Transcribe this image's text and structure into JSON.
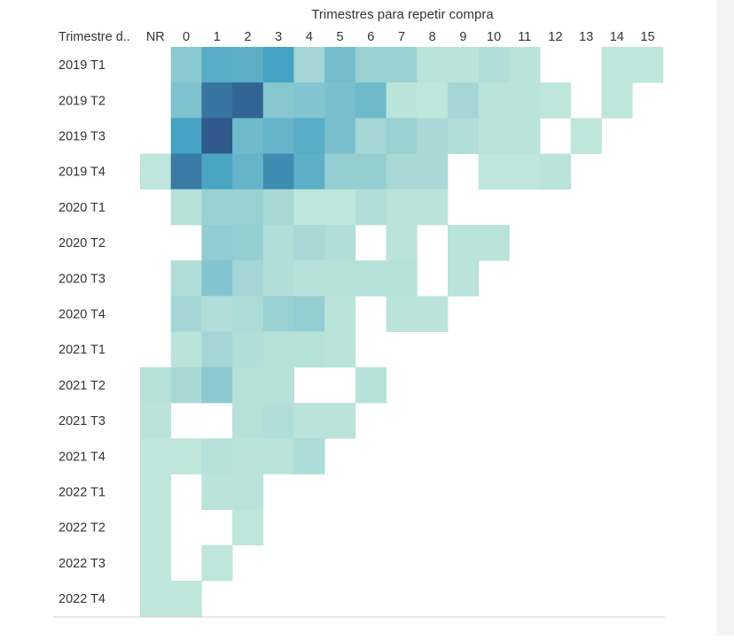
{
  "chart_data": {
    "type": "heatmap",
    "title": "Trimestres para repetir compra",
    "row_header": "Trimestre d..",
    "columns": [
      "NR",
      "0",
      "1",
      "2",
      "3",
      "4",
      "5",
      "6",
      "7",
      "8",
      "9",
      "10",
      "11",
      "12",
      "13",
      "14",
      "15"
    ],
    "rows": [
      "2019 T1",
      "2019 T2",
      "2019 T3",
      "2019 T4",
      "2020 T1",
      "2020 T2",
      "2020 T3",
      "2020 T4",
      "2021 T1",
      "2021 T2",
      "2021 T3",
      "2021 T4",
      "2022 T1",
      "2022 T2",
      "2022 T3",
      "2022 T4"
    ],
    "values": [
      [
        null,
        0.42,
        0.64,
        0.62,
        0.72,
        0.32,
        0.52,
        0.36,
        0.36,
        0.22,
        0.22,
        0.26,
        0.22,
        null,
        null,
        0.18,
        0.18
      ],
      [
        null,
        0.48,
        0.88,
        0.94,
        0.44,
        0.46,
        0.5,
        0.54,
        0.22,
        0.2,
        0.32,
        0.22,
        0.22,
        0.2,
        null,
        0.18,
        null
      ],
      [
        null,
        0.72,
        0.98,
        0.54,
        0.58,
        0.64,
        0.5,
        0.32,
        0.36,
        0.3,
        0.26,
        0.22,
        0.22,
        null,
        0.2,
        null,
        null
      ],
      [
        0.18,
        0.86,
        0.7,
        0.58,
        0.8,
        0.62,
        0.38,
        0.38,
        0.3,
        0.3,
        null,
        0.2,
        0.2,
        0.22,
        null,
        null,
        null
      ],
      [
        null,
        0.24,
        0.36,
        0.36,
        0.3,
        0.2,
        0.2,
        0.26,
        0.22,
        0.22,
        null,
        null,
        null,
        null,
        null,
        null,
        null
      ],
      [
        null,
        null,
        0.4,
        0.38,
        0.26,
        0.3,
        0.26,
        null,
        0.22,
        null,
        0.22,
        0.22,
        null,
        null,
        null,
        null,
        null
      ],
      [
        null,
        0.26,
        0.46,
        0.32,
        0.26,
        0.24,
        0.24,
        0.24,
        0.24,
        null,
        0.22,
        null,
        null,
        null,
        null,
        null,
        null
      ],
      [
        null,
        0.32,
        0.26,
        0.28,
        0.36,
        0.38,
        0.22,
        null,
        0.22,
        0.22,
        null,
        null,
        null,
        null,
        null,
        null,
        null
      ],
      [
        null,
        0.22,
        0.32,
        0.26,
        0.24,
        0.24,
        0.22,
        null,
        null,
        null,
        null,
        null,
        null,
        null,
        null,
        null,
        null
      ],
      [
        0.24,
        0.3,
        0.42,
        0.24,
        0.24,
        null,
        null,
        0.24,
        null,
        null,
        null,
        null,
        null,
        null,
        null,
        null,
        null
      ],
      [
        0.22,
        null,
        null,
        0.24,
        0.26,
        0.22,
        0.22,
        null,
        null,
        null,
        null,
        null,
        null,
        null,
        null,
        null,
        null
      ],
      [
        0.2,
        0.2,
        0.24,
        0.22,
        0.22,
        0.28,
        null,
        null,
        null,
        null,
        null,
        null,
        null,
        null,
        null,
        null,
        null
      ],
      [
        0.2,
        null,
        0.22,
        0.22,
        null,
        null,
        null,
        null,
        null,
        null,
        null,
        null,
        null,
        null,
        null,
        null,
        null
      ],
      [
        0.2,
        null,
        null,
        0.2,
        null,
        null,
        null,
        null,
        null,
        null,
        null,
        null,
        null,
        null,
        null,
        null,
        null
      ],
      [
        0.2,
        null,
        0.2,
        null,
        null,
        null,
        null,
        null,
        null,
        null,
        null,
        null,
        null,
        null,
        null,
        null,
        null
      ],
      [
        0.2,
        0.2,
        null,
        null,
        null,
        null,
        null,
        null,
        null,
        null,
        null,
        null,
        null,
        null,
        null,
        null,
        null
      ]
    ],
    "color_scale": {
      "low": "#bfe6db",
      "mid": "#45a2c2",
      "high": "#2d5487"
    },
    "value_range": [
      0,
      1
    ],
    "grid": false,
    "legend": "none"
  }
}
